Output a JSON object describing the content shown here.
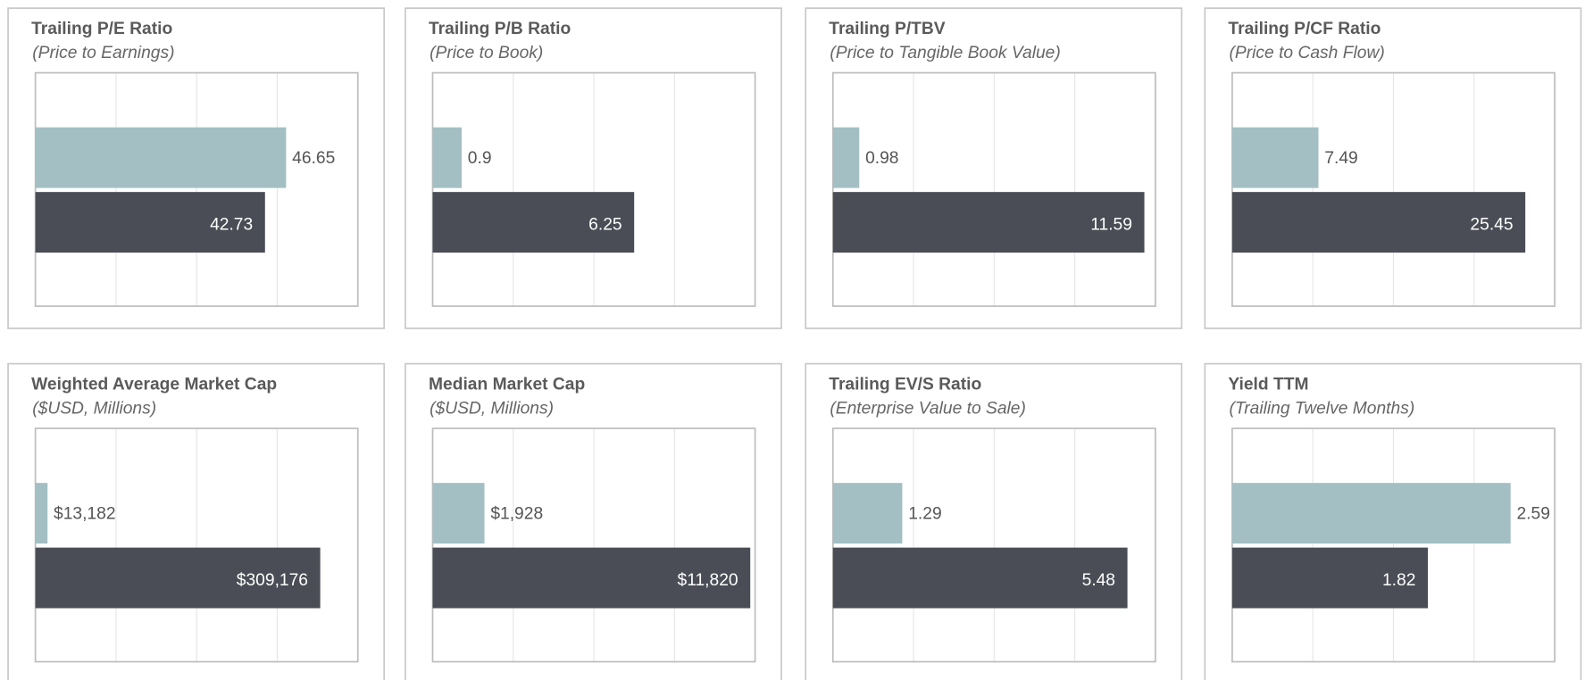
{
  "chart_data": [
    {
      "type": "bar",
      "title": "Trailing P/E Ratio",
      "subtitle": "(Price to Earnings)",
      "values": [
        46.65,
        42.73
      ],
      "colors": [
        "#a3bfc4",
        "#4a4d55"
      ],
      "xlim": [
        0,
        60
      ],
      "xticks": [
        0,
        15,
        30,
        45,
        60
      ],
      "grid": true
    },
    {
      "type": "bar",
      "title": "Trailing P/B Ratio",
      "subtitle": "(Price to Book)",
      "values": [
        0.9,
        6.25
      ],
      "colors": [
        "#a3bfc4",
        "#4a4d55"
      ],
      "xlim": [
        0,
        10
      ],
      "xticks": [
        0,
        2.5,
        5,
        7.5,
        10
      ],
      "grid": true
    },
    {
      "type": "bar",
      "title": "Trailing P/TBV",
      "subtitle": "(Price to Tangible Book Value)",
      "values": [
        0.98,
        11.59
      ],
      "colors": [
        "#a3bfc4",
        "#4a4d55"
      ],
      "xlim": [
        0,
        12
      ],
      "xticks": [
        0,
        3,
        6,
        9,
        12
      ],
      "grid": true
    },
    {
      "type": "bar",
      "title": "Trailing P/CF Ratio",
      "subtitle": "(Price to Cash Flow)",
      "values": [
        7.49,
        25.45
      ],
      "colors": [
        "#a3bfc4",
        "#4a4d55"
      ],
      "xlim": [
        0,
        28
      ],
      "xticks": [
        0,
        7,
        14,
        21,
        28
      ],
      "grid": true
    },
    {
      "type": "bar",
      "title": "Weighted Average Market Cap",
      "subtitle": "($USD, Millions)",
      "values": [
        13182,
        309176
      ],
      "value_labels": [
        "$13,182",
        "$309,176"
      ],
      "colors": [
        "#a3bfc4",
        "#4a4d55"
      ],
      "xlim": [
        0,
        350000
      ],
      "xticks": [
        0,
        87500,
        175000,
        262500,
        350000
      ],
      "grid": true
    },
    {
      "type": "bar",
      "title": "Median Market Cap",
      "subtitle": "($USD, Millions)",
      "values": [
        1928,
        11820
      ],
      "value_labels": [
        "$1,928",
        "$11,820"
      ],
      "colors": [
        "#a3bfc4",
        "#4a4d55"
      ],
      "xlim": [
        0,
        12000
      ],
      "xticks": [
        0,
        3000,
        6000,
        9000,
        12000
      ],
      "grid": true
    },
    {
      "type": "bar",
      "title": "Trailing EV/S Ratio",
      "subtitle": "(Enterprise Value to Sale)",
      "values": [
        1.29,
        5.48
      ],
      "colors": [
        "#a3bfc4",
        "#4a4d55"
      ],
      "xlim": [
        0,
        6
      ],
      "xticks": [
        0,
        1.5,
        3,
        4.5,
        6
      ],
      "grid": true
    },
    {
      "type": "bar",
      "title": "Yield TTM",
      "subtitle": "(Trailing Twelve Months)",
      "values": [
        2.59,
        1.82
      ],
      "colors": [
        "#a3bfc4",
        "#4a4d55"
      ],
      "xlim": [
        0,
        3
      ],
      "xticks": [
        0,
        0.75,
        1.5,
        2.25,
        3
      ],
      "grid": true
    }
  ]
}
